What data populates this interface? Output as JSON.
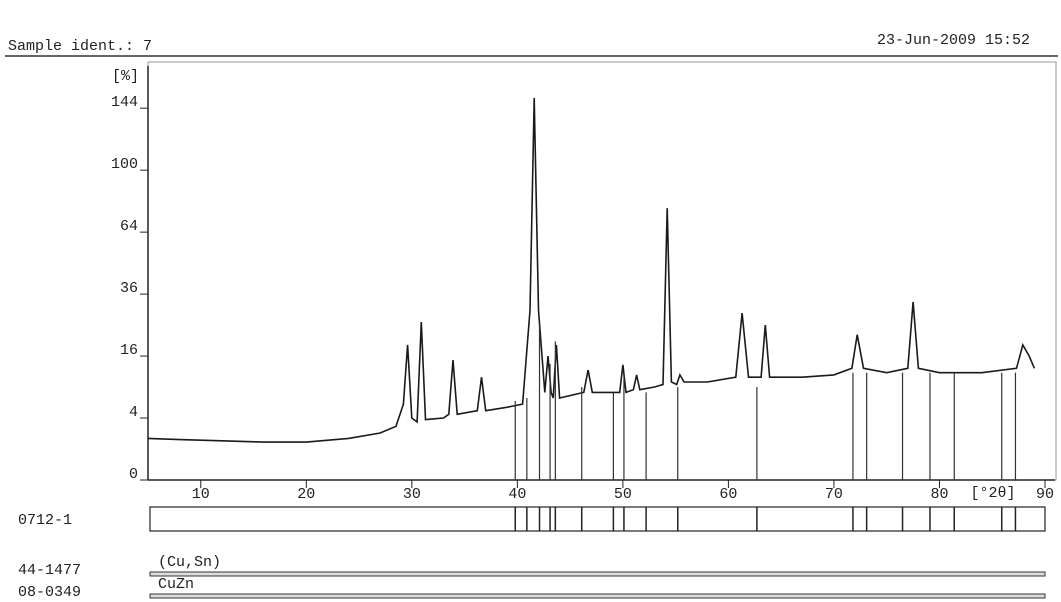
{
  "chart_data": {
    "type": "line",
    "header_left": "Sample ident.: 7",
    "header_right": "23-Jun-2009 15:52",
    "y_label": "[%]",
    "x_label": "[°2θ]",
    "yscale": "sqrt",
    "xlim": [
      5,
      90
    ],
    "ylim": [
      0,
      170
    ],
    "xticks": [
      10,
      20,
      30,
      40,
      50,
      60,
      70,
      80,
      90
    ],
    "yticks": [
      0,
      4,
      16,
      36,
      64,
      100,
      144
    ],
    "series": [
      {
        "color": "#1a1a1a",
        "x": [
          5,
          8,
          12,
          16,
          20,
          24,
          27,
          28.5,
          29.2,
          29.6,
          30,
          30.5,
          30.9,
          31.3,
          33,
          33.5,
          33.9,
          34.3,
          36.2,
          36.6,
          37,
          39,
          40.5,
          41.2,
          41.6,
          42,
          42.6,
          42.9,
          43.2,
          43.4,
          43.7,
          44,
          46.3,
          46.7,
          47.1,
          49.7,
          50,
          50.3,
          51,
          51.3,
          51.6,
          53,
          53.8,
          54.2,
          54.6,
          55.1,
          55.4,
          55.8,
          58,
          60.7,
          61.3,
          61.9,
          63.1,
          63.5,
          63.9,
          67,
          70,
          71.7,
          72.2,
          72.8,
          75,
          77,
          77.5,
          78,
          80,
          84,
          87.3,
          87.9,
          88.5,
          89
        ],
        "values": [
          1.8,
          1.7,
          1.6,
          1.5,
          1.5,
          1.8,
          2.3,
          3,
          6,
          19,
          4,
          3.5,
          26,
          3.8,
          4,
          4.5,
          15,
          4.5,
          5,
          11,
          5,
          5.5,
          6,
          30,
          152,
          30,
          8,
          16,
          8,
          7,
          19,
          7,
          8,
          12.6,
          8,
          8,
          13.8,
          8,
          8.5,
          11.5,
          8.5,
          9,
          9.5,
          77,
          10,
          9.5,
          11.5,
          10,
          10,
          11,
          29,
          11,
          11,
          25,
          11,
          11,
          11.5,
          13,
          22,
          13,
          12,
          13,
          33,
          13,
          12,
          12,
          13,
          19,
          16,
          13
        ]
      }
    ],
    "sticks": {
      "color": "#333333",
      "x": [
        39.8,
        40.9,
        42.1,
        43.1,
        43.6,
        46.1,
        49.1,
        50.1,
        52.2,
        55.2,
        62.7,
        71.8,
        73.1,
        76.5,
        79.1,
        81.4,
        85.9,
        87.2
      ],
      "values": [
        6.5,
        7,
        25,
        14,
        20,
        9,
        8,
        12,
        8,
        9,
        9,
        12,
        12,
        12,
        12,
        12,
        12,
        12
      ]
    },
    "references": [
      {
        "code": "0712-1"
      },
      {
        "code": "44-1477",
        "phase": "(Cu,Sn)"
      },
      {
        "code": "08-0349",
        "phase": "CuZn"
      }
    ]
  }
}
